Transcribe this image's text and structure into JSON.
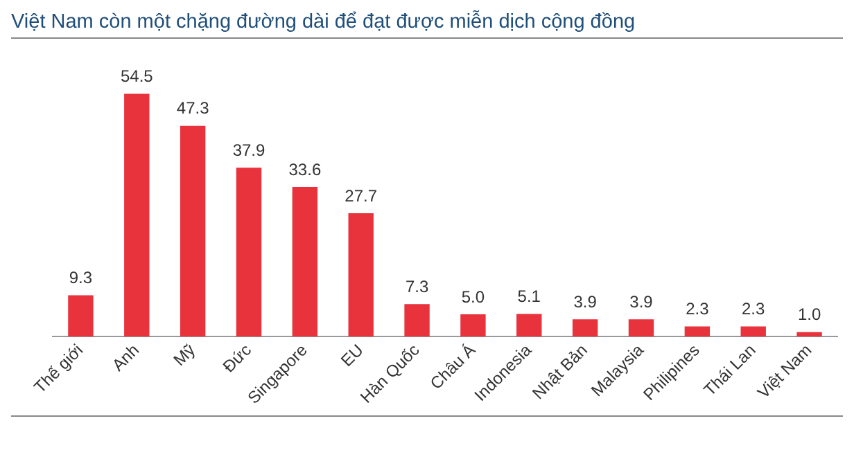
{
  "chart_data": {
    "type": "bar",
    "title": "Việt Nam còn một chặng đường dài để đạt được miễn dịch cộng đồng",
    "categories": [
      "Thế giới",
      "Anh",
      "Mỹ",
      "Đức",
      "Singapore",
      "EU",
      "Hàn Quốc",
      "Châu Á",
      "Indonesia",
      "Nhật Bản",
      "Malaysia",
      "Philipines",
      "Thái Lan",
      "Việt Nam"
    ],
    "values": [
      9.3,
      54.5,
      47.3,
      37.9,
      33.6,
      27.7,
      7.3,
      5.0,
      5.1,
      3.9,
      3.9,
      2.3,
      2.3,
      1.0
    ],
    "value_labels": [
      "9.3",
      "54.5",
      "47.3",
      "37.9",
      "33.6",
      "27.7",
      "7.3",
      "5.0",
      "5.1",
      "3.9",
      "3.9",
      "2.3",
      "2.3",
      "1.0"
    ],
    "color": "#e8323c",
    "grid": false,
    "legend": false
  }
}
